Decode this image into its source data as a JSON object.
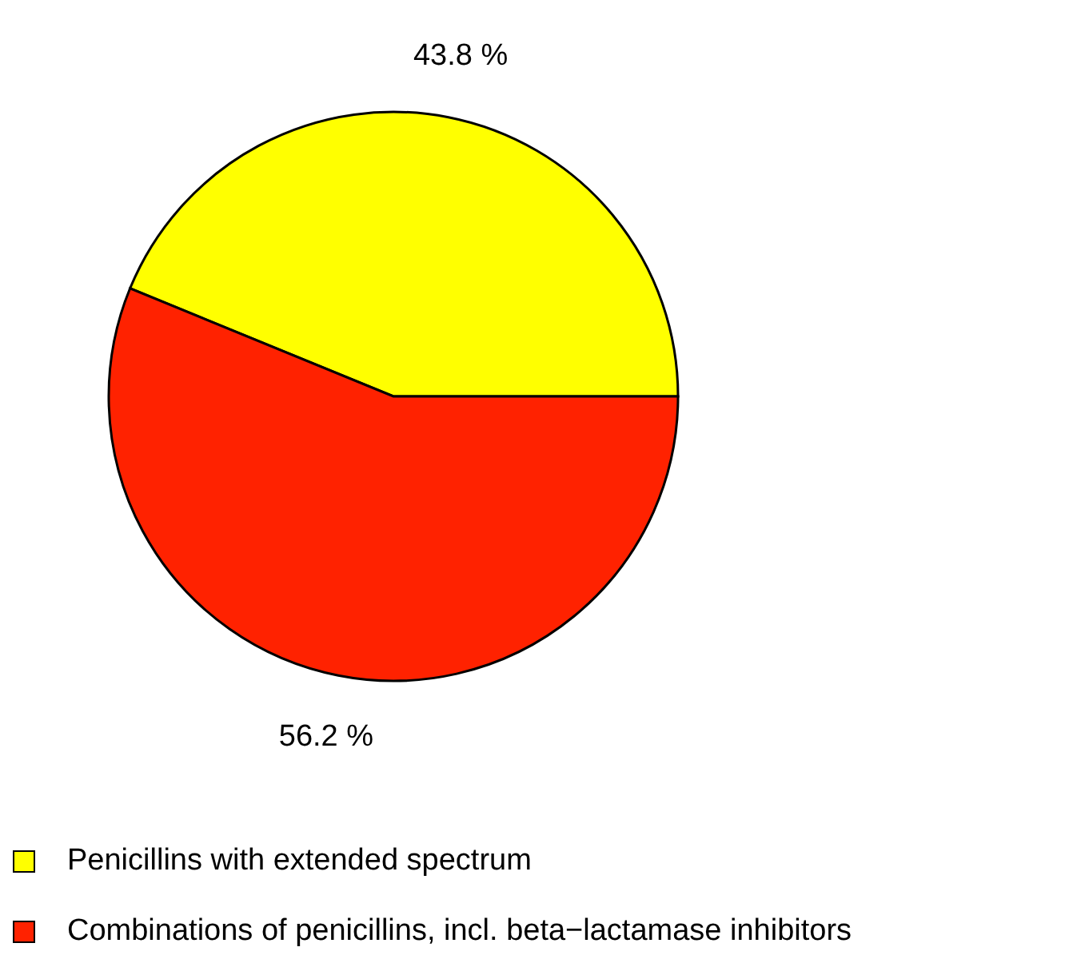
{
  "chart_data": {
    "type": "pie",
    "categories": [
      "Penicillins with extended spectrum",
      "Combinations of penicillins, incl. beta−lactamase inhibitors"
    ],
    "values": [
      43.8,
      56.2
    ],
    "colors": [
      "#ffff00",
      "#ff2200"
    ],
    "value_labels": [
      "43.8 %",
      "56.2 %"
    ],
    "legend": "bottom"
  }
}
